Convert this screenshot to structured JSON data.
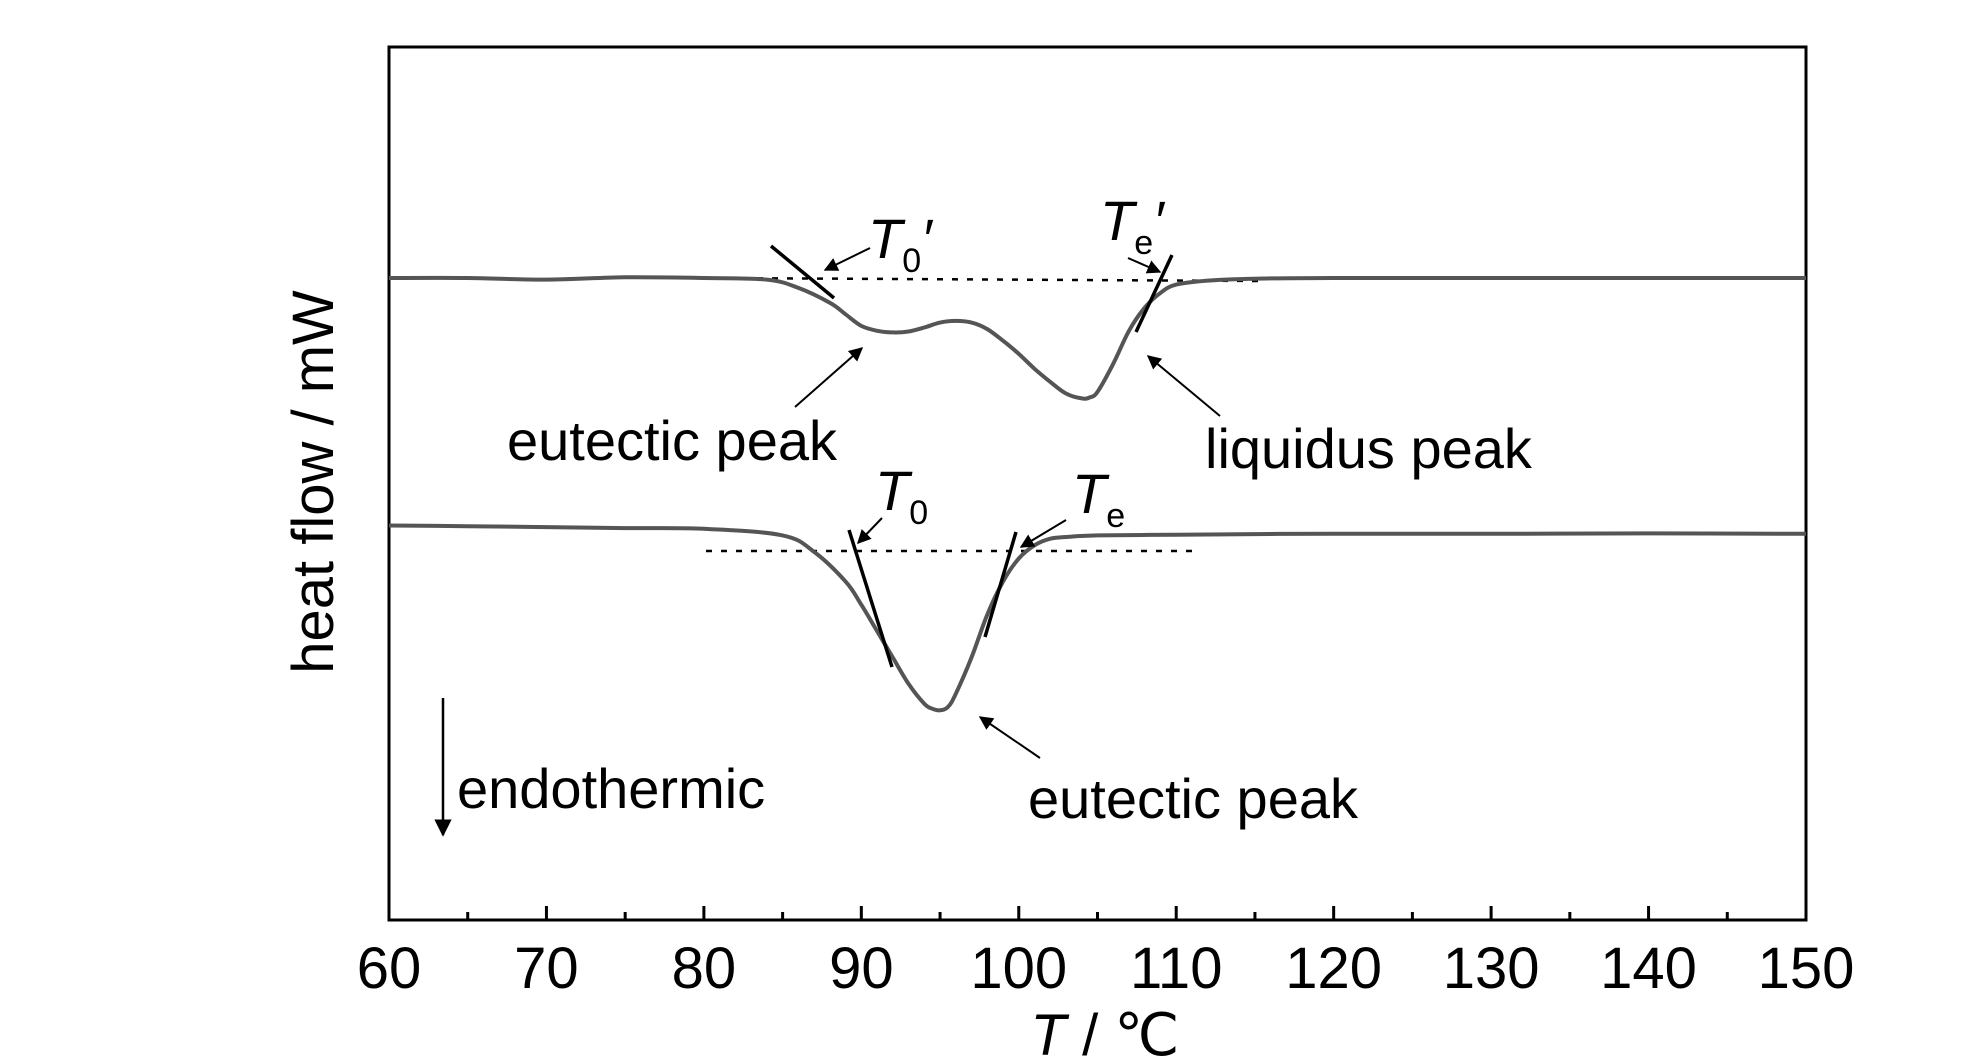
{
  "chart_data": {
    "type": "line",
    "xlabel_italic": "T",
    "xlabel_rest": " / ℃",
    "ylabel": "heat flow / mW",
    "xlim": [
      60,
      150
    ],
    "x_ticks": [
      "60",
      "70",
      "80",
      "90",
      "100",
      "110",
      "120",
      "130",
      "140",
      "150"
    ],
    "y_ticks_shown": false,
    "grid": false,
    "series": [
      {
        "x": [
          60,
          65,
          70,
          75,
          80,
          84,
          86,
          88,
          89,
          90,
          91,
          92,
          93,
          94,
          95,
          96,
          97,
          98,
          99,
          100,
          101,
          102,
          103,
          104,
          104.5,
          105,
          106,
          107,
          108,
          109,
          110,
          112,
          115,
          120,
          130,
          140,
          150
        ],
        "y": [
          0,
          0,
          -0.05,
          0.02,
          0,
          -0.05,
          -0.3,
          -0.75,
          -1.1,
          -1.45,
          -1.6,
          -1.65,
          -1.62,
          -1.5,
          -1.35,
          -1.3,
          -1.35,
          -1.55,
          -1.9,
          -2.3,
          -2.75,
          -3.15,
          -3.5,
          -3.65,
          -3.62,
          -3.45,
          -2.6,
          -1.6,
          -0.9,
          -0.45,
          -0.2,
          -0.08,
          -0.02,
          0,
          0,
          0,
          0
        ]
      },
      {
        "x": [
          60,
          65,
          70,
          75,
          80,
          85,
          87,
          89,
          90,
          91,
          92,
          93,
          94,
          94.5,
          95,
          95.5,
          96,
          97,
          98,
          99,
          100,
          101,
          102,
          103,
          105,
          110,
          115,
          120,
          130,
          140,
          150
        ],
        "y": [
          -7.5,
          -7.52,
          -7.55,
          -7.58,
          -7.6,
          -7.8,
          -8.3,
          -9.2,
          -9.9,
          -10.7,
          -11.5,
          -12.3,
          -12.9,
          -13.05,
          -13.1,
          -13.0,
          -12.6,
          -11.5,
          -10.2,
          -9.2,
          -8.5,
          -8.1,
          -7.9,
          -7.85,
          -7.8,
          -7.78,
          -7.76,
          -7.75,
          -7.75,
          -7.74,
          -7.75
        ]
      }
    ],
    "annotations": {
      "eutectic_peak_top": "eutectic peak",
      "liquidus_peak": "liquidus peak",
      "eutectic_peak_bottom": "eutectic peak",
      "endothermic": "endothermic",
      "t0_prime_sym": "T",
      "t0_prime_sub": "0",
      "te_prime_sym": "T",
      "te_prime_sub": "e",
      "prime": "′",
      "t0_sym": "T",
      "t0_sub": "0",
      "te_sym": "T",
      "te_sub": "e"
    },
    "colors": {
      "curve": "#555555",
      "axis": "#000000"
    }
  }
}
